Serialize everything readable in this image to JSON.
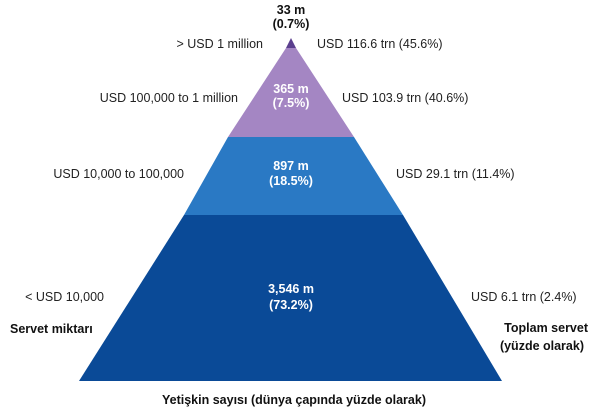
{
  "colors": {
    "tier1": "#5b3f8e",
    "tier2": "#a486c3",
    "tier3": "#2a79c4",
    "tier4": "#0a4a97"
  },
  "top_tier": {
    "count": "33 m",
    "share": "(0.7%)"
  },
  "tiers": [
    {
      "wealth_range": "> USD 1 million",
      "adults_count": "",
      "adults_share": "",
      "total_wealth": "USD 116.6 trn (45.6%)"
    },
    {
      "wealth_range": "USD 100,000  to 1 million",
      "adults_count": "365 m",
      "adults_share": "(7.5%)",
      "total_wealth": "USD 103.9 trn (40.6%)"
    },
    {
      "wealth_range": "USD 10,000  to 100,000",
      "adults_count": "897 m",
      "adults_share": "(18.5%)",
      "total_wealth": "USD 29.1 trn (11.4%)"
    },
    {
      "wealth_range": "<  USD 10,000",
      "adults_count": "3,546 m",
      "adults_share": "(73.2%)",
      "total_wealth": "USD 6.1 trn (2.4%)"
    }
  ],
  "captions": {
    "left": "Servet miktarı",
    "right_line1": "Toplam servet",
    "right_line2": "(yüzde olarak)",
    "bottom": "Yetişkin sayısı (dünya çapında yüzde olarak)"
  }
}
